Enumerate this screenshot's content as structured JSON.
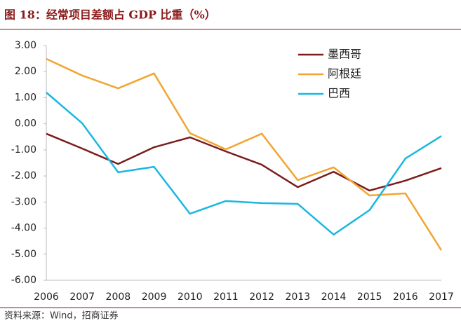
{
  "chart_data": {
    "type": "line",
    "title": "图 18：经常项目差额占 GDP 比重（%）",
    "source": "资料来源：Wind，招商证券",
    "categories": [
      "2006",
      "2007",
      "2008",
      "2009",
      "2010",
      "2011",
      "2012",
      "2013",
      "2014",
      "2015",
      "2016",
      "2017"
    ],
    "series": [
      {
        "name": "墨西哥",
        "color": "#7b1c1c",
        "values": [
          -0.38,
          -0.95,
          -1.54,
          -0.9,
          -0.52,
          -1.06,
          -1.57,
          -2.43,
          -1.84,
          -2.56,
          -2.18,
          -1.7
        ]
      },
      {
        "name": "阿根廷",
        "color": "#f2a531",
        "values": [
          2.49,
          1.85,
          1.36,
          1.93,
          -0.36,
          -0.98,
          -0.38,
          -2.16,
          -1.67,
          -2.75,
          -2.67,
          -4.85
        ]
      },
      {
        "name": "巴西",
        "color": "#1ab7e2",
        "values": [
          1.2,
          0.02,
          -1.86,
          -1.65,
          -3.45,
          -2.96,
          -3.04,
          -3.07,
          -4.25,
          -3.31,
          -1.33,
          -0.47
        ]
      }
    ],
    "ylim": [
      -6,
      3
    ],
    "yticks": [
      {
        "value": 3,
        "label": "3.00"
      },
      {
        "value": 2,
        "label": "2.00"
      },
      {
        "value": 1,
        "label": "1.00"
      },
      {
        "value": 0,
        "label": "0.00"
      },
      {
        "value": -1,
        "label": "-1.00"
      },
      {
        "value": -2,
        "label": "-2.00"
      },
      {
        "value": -3,
        "label": "-3.00"
      },
      {
        "value": -4,
        "label": "-4.00"
      },
      {
        "value": -5,
        "label": "-5.00"
      },
      {
        "value": -6,
        "label": "-6.00"
      }
    ],
    "grid": false,
    "legend": "top-right"
  }
}
